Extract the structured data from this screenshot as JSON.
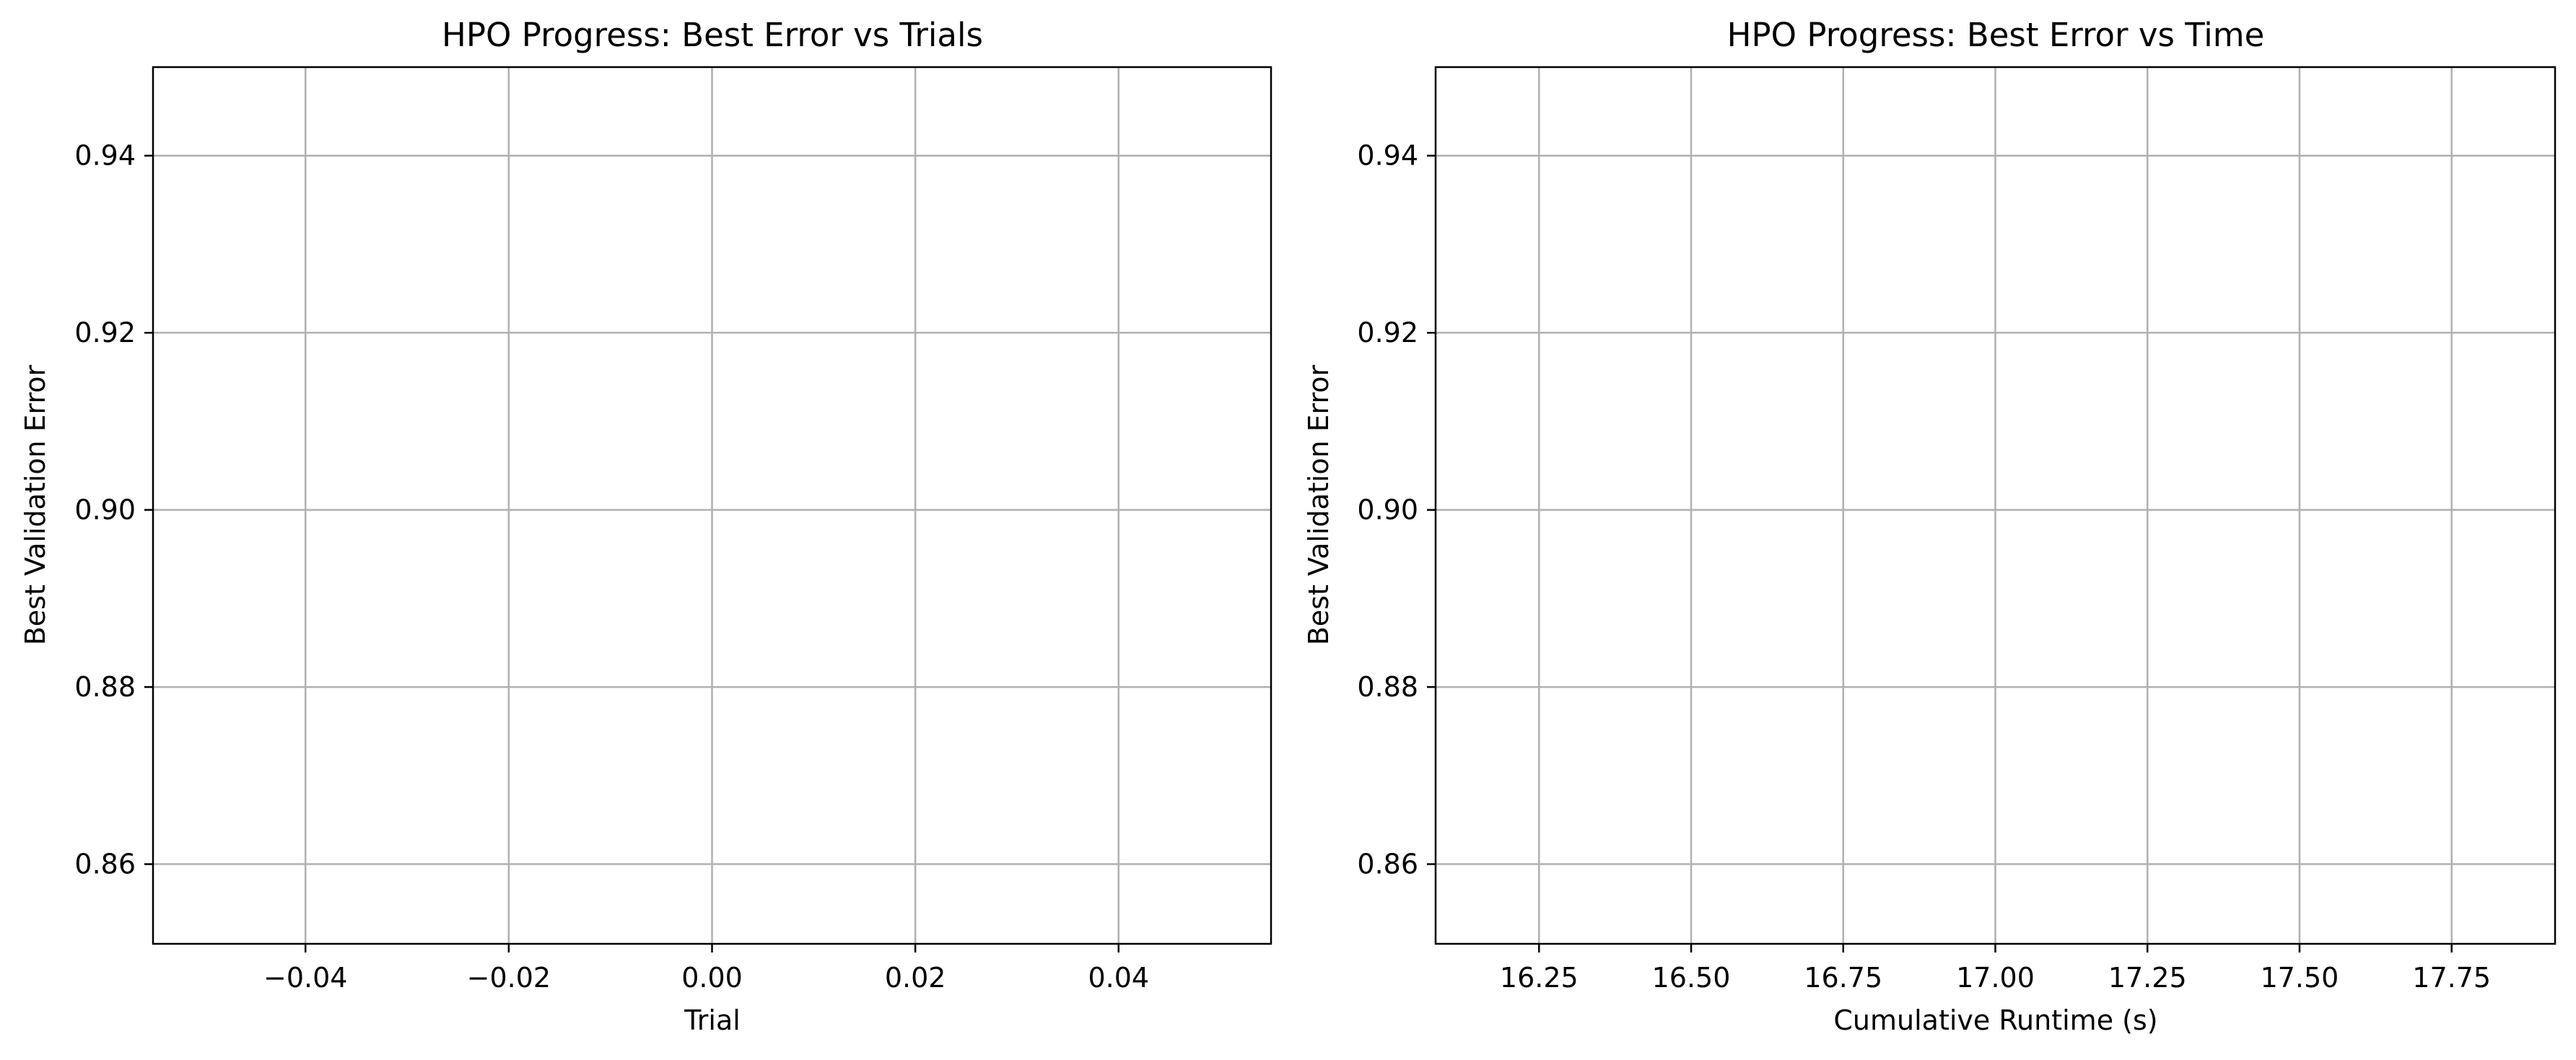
{
  "chart_data": [
    {
      "type": "line",
      "title": "HPO Progress: Best Error vs Trials",
      "xlabel": "Trial",
      "ylabel": "Best Validation Error",
      "xlim": [
        -0.055,
        0.055
      ],
      "ylim": [
        0.851,
        0.95
      ],
      "x_ticks": [
        -0.04,
        -0.02,
        0.0,
        0.02,
        0.04
      ],
      "x_tick_labels": [
        "−0.04",
        "−0.02",
        "0.00",
        "0.02",
        "0.04"
      ],
      "y_ticks": [
        0.86,
        0.88,
        0.9,
        0.92,
        0.94
      ],
      "y_tick_labels": [
        "0.86",
        "0.88",
        "0.90",
        "0.92",
        "0.94"
      ],
      "grid": true,
      "series": []
    },
    {
      "type": "line",
      "title": "HPO Progress: Best Error vs Time",
      "xlabel": "Cumulative Runtime (s)",
      "ylabel": "Best Validation Error",
      "xlim": [
        16.08,
        17.92
      ],
      "ylim": [
        0.851,
        0.95
      ],
      "x_ticks": [
        16.25,
        16.5,
        16.75,
        17.0,
        17.25,
        17.5,
        17.75
      ],
      "x_tick_labels": [
        "16.25",
        "16.50",
        "16.75",
        "17.00",
        "17.25",
        "17.50",
        "17.75"
      ],
      "y_ticks": [
        0.86,
        0.88,
        0.9,
        0.92,
        0.94
      ],
      "y_tick_labels": [
        "0.86",
        "0.88",
        "0.90",
        "0.92",
        "0.94"
      ],
      "grid": true,
      "series": []
    }
  ]
}
